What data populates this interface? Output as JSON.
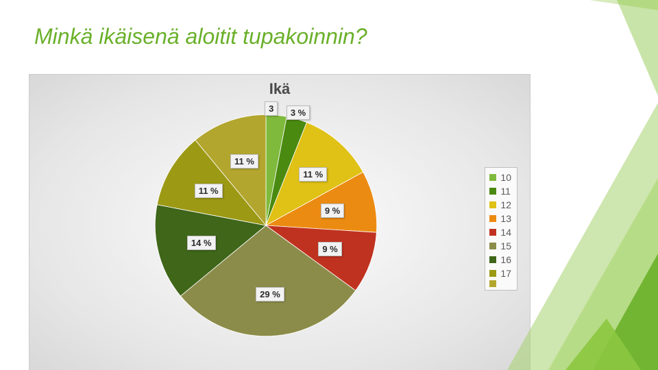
{
  "title": "Minkä ikäisenä aloitit tupakoinnin?",
  "chart": {
    "type": "pie",
    "title": "Ikä",
    "title_fontsize": 22,
    "background_gradient": [
      "#fdfdfd",
      "#d8d8d8"
    ],
    "slices": [
      {
        "label": "10",
        "value": 3,
        "display": "3",
        "color": "#7fba3c"
      },
      {
        "label": "11",
        "value": 3,
        "display": "3 %",
        "color": "#4a8a10"
      },
      {
        "label": "12",
        "value": 11,
        "display": "11 %",
        "color": "#e0c115"
      },
      {
        "label": "13",
        "value": 9,
        "display": "9 %",
        "color": "#ec8b12"
      },
      {
        "label": "14",
        "value": 9,
        "display": "9 %",
        "color": "#c03220"
      },
      {
        "label": "15",
        "value": 29,
        "display": "29 %",
        "color": "#8c8c4a"
      },
      {
        "label": "16",
        "value": 14,
        "display": "14 %",
        "color": "#3f6619"
      },
      {
        "label": "17",
        "value": 11,
        "display": "11 %",
        "color": "#9c9914"
      },
      {
        "label": "",
        "value": 11,
        "display": "11 %",
        "color": "#b3a62f"
      }
    ],
    "label_fontsize": 13,
    "legend_fontsize": 14
  },
  "decor": {
    "colors": [
      "#a5d26e",
      "#c4e59a",
      "#8cc63f",
      "#6ab02a"
    ]
  }
}
